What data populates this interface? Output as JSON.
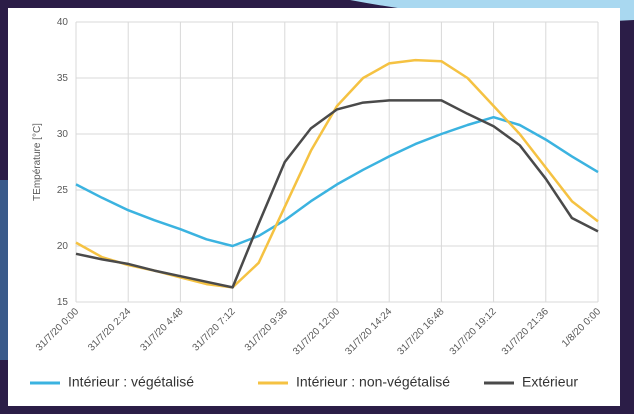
{
  "chart_data": {
    "type": "line",
    "y_label": "TEmpérature [°C]",
    "x": [
      "31/7/20 0:00",
      "31/7/20 1:12",
      "31/7/20 2:24",
      "31/7/20 3:36",
      "31/7/20 4:48",
      "31/7/20 6:00",
      "31/7/20 7:12",
      "31/7/20 8:24",
      "31/7/20 9:36",
      "31/7/20 10:48",
      "31/7/20 12:00",
      "31/7/20 13:12",
      "31/7/20 14:24",
      "31/7/20 15:36",
      "31/7/20 16:48",
      "31/7/20 18:00",
      "31/7/20 19:12",
      "31/7/20 20:24",
      "31/7/20 21:36",
      "31/7/20 22:48",
      "1/8/20 0:00"
    ],
    "series": [
      {
        "name": "Intérieur : végétalisé",
        "color": "#3bb3e0",
        "values": [
          25.5,
          24.3,
          23.2,
          22.3,
          21.5,
          20.6,
          20.0,
          20.9,
          22.3,
          24.0,
          25.5,
          26.8,
          28.0,
          29.1,
          30.0,
          30.8,
          31.5,
          30.8,
          29.5,
          28.0,
          26.6
        ]
      },
      {
        "name": "Intérieur : non-végétalisé",
        "color": "#f5c242",
        "values": [
          20.3,
          19.0,
          18.3,
          17.8,
          17.2,
          16.6,
          16.3,
          18.5,
          23.5,
          28.5,
          32.5,
          35.0,
          36.3,
          36.6,
          36.5,
          35.0,
          32.5,
          30.0,
          27.0,
          24.0,
          22.2
        ]
      },
      {
        "name": "Extérieur",
        "color": "#4a4a4a",
        "values": [
          19.3,
          18.8,
          18.4,
          17.8,
          17.3,
          16.8,
          16.3,
          22.0,
          27.5,
          30.5,
          32.2,
          32.8,
          33.0,
          33.0,
          33.0,
          31.8,
          30.7,
          29.0,
          26.0,
          22.5,
          21.3
        ]
      }
    ],
    "xlim": [
      "31/7/20 0:00",
      "1/8/20 0:00"
    ],
    "xticks": [
      "31/7/20 0:00",
      "31/7/20 2:24",
      "31/7/20 4:48",
      "31/7/20 7:12",
      "31/7/20 9:36",
      "31/7/20 12:00",
      "31/7/20 14:24",
      "31/7/20 16:48",
      "31/7/20 19:12",
      "31/7/20 21:36",
      "1/8/20 0:00"
    ],
    "ylim": [
      15,
      40
    ],
    "yticks": [
      15,
      20,
      25,
      30,
      35,
      40
    ],
    "grid": true
  }
}
